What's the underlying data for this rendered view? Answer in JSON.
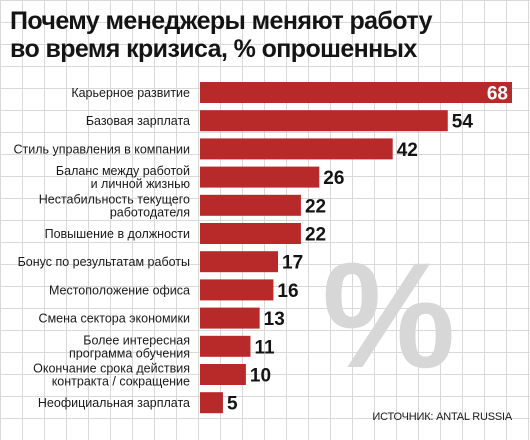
{
  "header": {
    "title_line1": "Почему менеджеры меняют работу",
    "title_line2": "во время кризиса, % опрошенных"
  },
  "decor": {
    "percent_glyph": "%"
  },
  "source": "ИСТОЧНИК: ANTAL RUSSIA",
  "colors": {
    "bar": "#b82a2a",
    "grid": "#d9d9d9",
    "value_inside": "#ffffff"
  },
  "chart_data": {
    "type": "bar",
    "orientation": "horizontal",
    "categories": [
      [
        "Карьерное развитие"
      ],
      [
        "Базовая зарплата"
      ],
      [
        "Стиль управления в компании"
      ],
      [
        "Баланс между работой",
        "и личной жизнью"
      ],
      [
        "Нестабильность текущего",
        "работодателя"
      ],
      [
        "Повышение в должности"
      ],
      [
        "Бонус по результатам работы"
      ],
      [
        "Местоположение офиса"
      ],
      [
        "Смена сектора экономики"
      ],
      [
        "Более интересная",
        "программа обучения"
      ],
      [
        "Окончание срока действия",
        "контракта / сокращение"
      ],
      [
        "Неофициальная зарплата"
      ]
    ],
    "values": [
      68,
      54,
      42,
      26,
      22,
      22,
      17,
      16,
      13,
      11,
      10,
      5
    ],
    "xlim": [
      0,
      68
    ],
    "grid": true,
    "axes_visible": false
  }
}
